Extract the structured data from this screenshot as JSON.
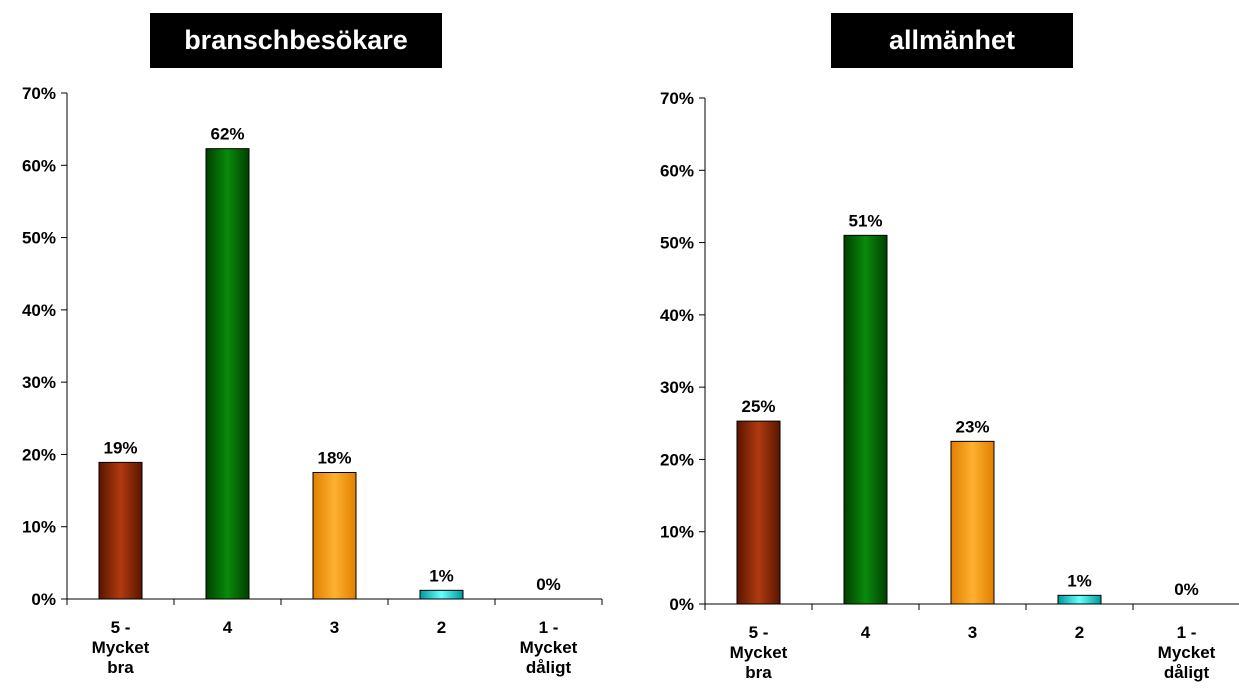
{
  "chart_data": [
    {
      "type": "bar",
      "title": "branschbesökare",
      "categories": [
        [
          "5 -",
          "Mycket",
          "bra"
        ],
        [
          "4"
        ],
        [
          "3"
        ],
        [
          "2"
        ],
        [
          "1 -",
          "Mycket",
          "dåligt"
        ]
      ],
      "values": [
        19,
        62,
        18,
        1,
        0
      ],
      "heights": [
        18.9,
        62.3,
        17.5,
        1.2,
        0
      ],
      "value_labels": [
        "19%",
        "62%",
        "18%",
        "1%",
        "0%"
      ],
      "yticks": [
        "0%",
        "10%",
        "20%",
        "30%",
        "40%",
        "50%",
        "60%",
        "70%"
      ],
      "ylim": [
        0,
        70
      ],
      "grid": false,
      "colors": [
        "#8B2500",
        "#006400",
        "#FF9900",
        "#00CCCC",
        "#999999"
      ]
    },
    {
      "type": "bar",
      "title": "allmänhet",
      "categories": [
        [
          "5 -",
          "Mycket",
          "bra"
        ],
        [
          "4"
        ],
        [
          "3"
        ],
        [
          "2"
        ],
        [
          "1 -",
          "Mycket",
          "dåligt"
        ]
      ],
      "values": [
        25,
        51,
        23,
        1,
        0
      ],
      "heights": [
        25.3,
        51,
        22.5,
        1.2,
        0
      ],
      "value_labels": [
        "25%",
        "51%",
        "23%",
        "1%",
        "0%"
      ],
      "yticks": [
        "0%",
        "10%",
        "20%",
        "30%",
        "40%",
        "50%",
        "60%",
        "70%"
      ],
      "ylim": [
        0,
        70
      ],
      "grid": false,
      "colors": [
        "#8B2500",
        "#006400",
        "#FF9900",
        "#00CCCC",
        "#999999"
      ]
    }
  ]
}
